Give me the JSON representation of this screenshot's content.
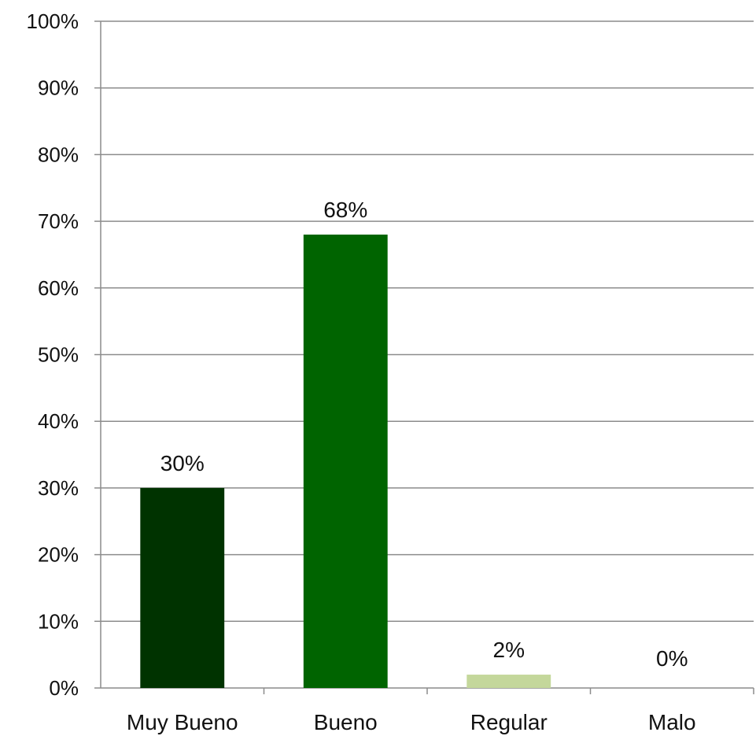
{
  "chart_data": {
    "type": "bar",
    "categories": [
      "Muy Bueno",
      "Bueno",
      "Regular",
      "Malo"
    ],
    "values": [
      30,
      68,
      2,
      0
    ],
    "data_labels": [
      "30%",
      "68%",
      "2%",
      "0%"
    ],
    "bar_colors": [
      "#003300",
      "#006400",
      "#c4d79b",
      "#c4d79b"
    ],
    "ylim": [
      0,
      100
    ],
    "yticks": [
      0,
      10,
      20,
      30,
      40,
      50,
      60,
      70,
      80,
      90,
      100
    ],
    "ytick_labels": [
      "0%",
      "10%",
      "20%",
      "30%",
      "40%",
      "50%",
      "60%",
      "70%",
      "80%",
      "90%",
      "100%"
    ],
    "grid": true,
    "legend": "none",
    "title": "",
    "xlabel": "",
    "ylabel": ""
  }
}
